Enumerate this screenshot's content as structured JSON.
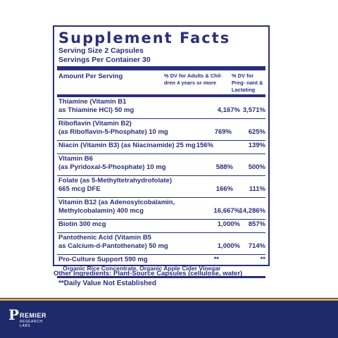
{
  "title": "Supplement Facts",
  "serving_size": "Serving Size 2 Capsules",
  "servings_per_container": "Servings Per Container 30",
  "header": {
    "amount": "Amount Per Serving",
    "dv_adults": "% DV for Adults & Chil- dren 4 years or more",
    "dv_preg": "% DV for Preg- nant & Lactating"
  },
  "rows": [
    {
      "l1": "Thiamine (Vitamin B1",
      "l2": "as Thiamine HCl)  50 mg",
      "dv1": "4,167%",
      "dv2": "3,571%"
    },
    {
      "l1": "Riboflavin (Vitamin B2)",
      "l2": "(as Riboflavin-5-Phosphate)   10 mg",
      "dv1": "769%",
      "dv2": "625%"
    },
    {
      "l1": "Niacin (Vitamin B3) (as Niacinamide) 25 mg",
      "l2": "",
      "dv1": "156%",
      "dv2": "139%"
    },
    {
      "l1": "Vitamin B6",
      "l2": "(as Pyridoxal-5-Phosphate)   10 mg",
      "dv1": "588%",
      "dv2": "500%"
    },
    {
      "l1": "Folate (as 5-Methyltetrahydrofolate)",
      "l2": "665 mcg DFE",
      "dv1": "166%",
      "dv2": "111%"
    },
    {
      "l1": "Vitamin B12 (as Adenosylcobalamin,",
      "l2": "Methylcobalamin)   400 mcg",
      "dv1": "16,667%",
      "dv2": "14,286%"
    },
    {
      "l1": "Biotin   300 mcg",
      "l2": "",
      "dv1": "1,000%",
      "dv2": "857%"
    },
    {
      "l1": "Pantothenic Acid (Vitamin B5",
      "l2": "as Calcium-d-Pantothenate)  50 mg",
      "dv1": "1,000%",
      "dv2": "714%"
    },
    {
      "l1": "Pro-Culture Support  590 mg",
      "l2": "Organic Rice Concentrate, Organic Apple Cider Vinegar",
      "dv1": "**",
      "dv2": "**"
    }
  ],
  "footnote": "**Daily Value Not Established",
  "other_ingredients": "Other Ingredients: Plant-Source Capsules (cellulose, water)",
  "brand": {
    "initial": "P",
    "name": "REMIER",
    "tagline": "RESEARCH LABS"
  },
  "colors": {
    "ink": "#2a2f7a",
    "band": "#1f2a6b",
    "gold": "#d8b04a"
  }
}
